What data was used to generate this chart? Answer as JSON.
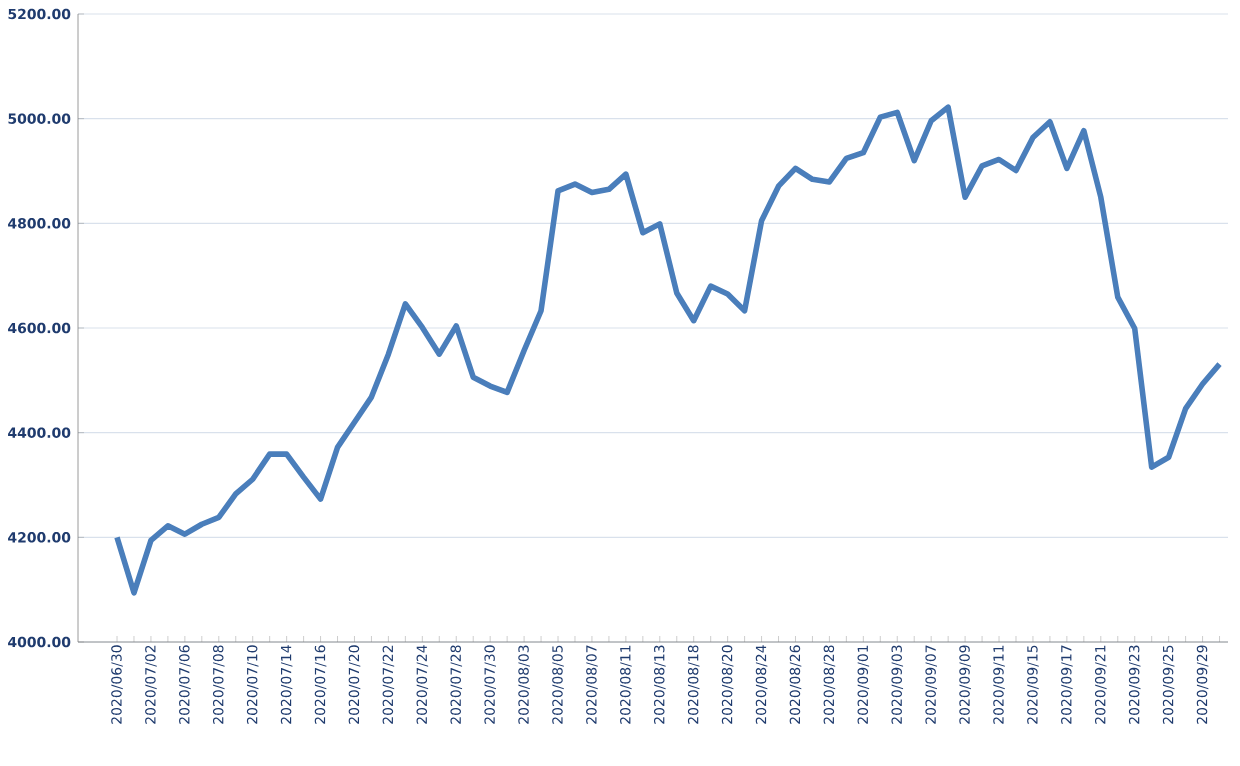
{
  "chart_data": {
    "type": "line",
    "categories": [
      "2020/06/30",
      null,
      "2020/07/02",
      null,
      "2020/07/06",
      null,
      "2020/07/08",
      null,
      "2020/07/10",
      null,
      "2020/07/14",
      null,
      "2020/07/16",
      null,
      "2020/07/20",
      null,
      "2020/07/22",
      null,
      "2020/07/24",
      null,
      "2020/07/28",
      null,
      "2020/07/30",
      null,
      "2020/08/03",
      null,
      "2020/08/05",
      null,
      "2020/08/07",
      null,
      "2020/08/11",
      null,
      "2020/08/13",
      null,
      "2020/08/18",
      null,
      "2020/08/20",
      null,
      "2020/08/24",
      null,
      "2020/08/26",
      null,
      "2020/08/28",
      null,
      "2020/09/01",
      null,
      "2020/09/03",
      null,
      "2020/09/07",
      null,
      "2020/09/09",
      null,
      "2020/09/11",
      null,
      "2020/09/15",
      null,
      "2020/09/17",
      null,
      "2020/09/21",
      null,
      "2020/09/23",
      null,
      "2020/09/25",
      null,
      "2020/09/29",
      null
    ],
    "series": [
      {
        "color": "#4a7ebb",
        "values": [
          4200,
          4094,
          4194,
          4222,
          4206,
          4225,
          4238,
          4283,
          4311,
          4359,
          4359,
          4315,
          4273,
          4372,
          4420,
          4468,
          4550,
          4646,
          4601,
          4550,
          4604,
          4506,
          4489,
          4477,
          4557,
          4633,
          4862,
          4875,
          4859,
          4865,
          4894,
          4782,
          4799,
          4667,
          4614,
          4680,
          4665,
          4633,
          4805,
          4871,
          4905,
          4884,
          4879,
          4924,
          4935,
          5003,
          5012,
          4920,
          4996,
          5022,
          4850,
          4910,
          4922,
          4901,
          4964,
          4994,
          4905,
          4977,
          4850,
          4659,
          4599,
          4334,
          4353,
          4446,
          4493,
          4531
        ]
      }
    ],
    "ylim": [
      4000,
      5200
    ],
    "yticks": [
      {
        "value": 4000,
        "label": "4000.00"
      },
      {
        "value": 4200,
        "label": "4200.00"
      },
      {
        "value": 4400,
        "label": "4400.00"
      },
      {
        "value": 4600,
        "label": "4600.00"
      },
      {
        "value": 4800,
        "label": "4800.00"
      },
      {
        "value": 5000,
        "label": "5000.00"
      },
      {
        "value": 5200,
        "label": "5200.00"
      }
    ],
    "grid": "y",
    "marker": "none",
    "line_style": "solid"
  }
}
